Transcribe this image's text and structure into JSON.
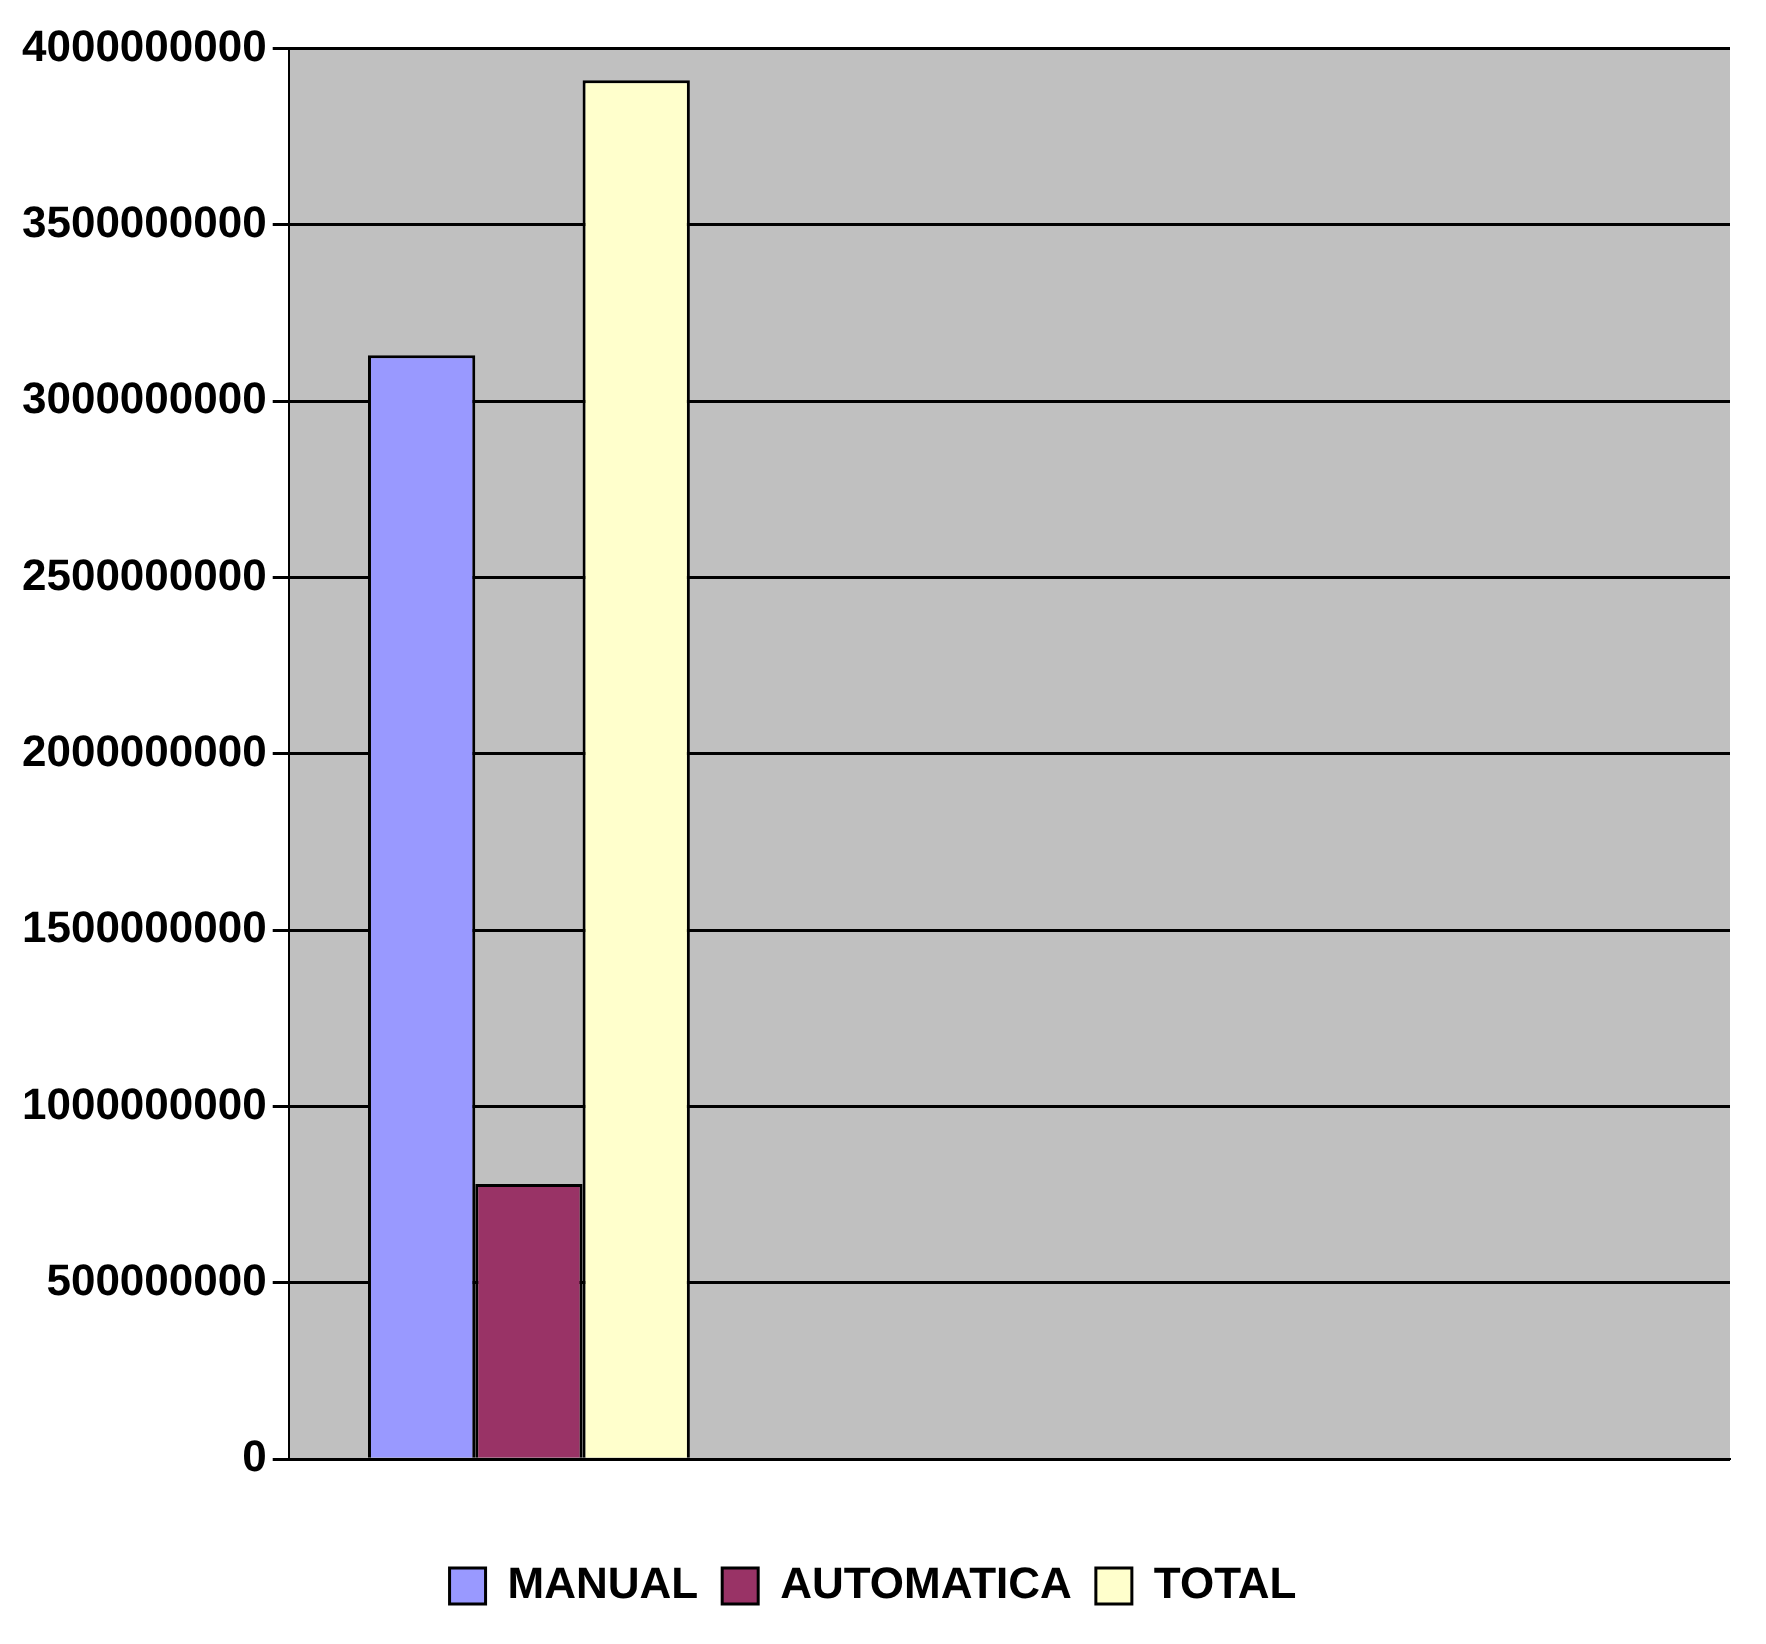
{
  "chart_data": {
    "type": "bar",
    "categories": [
      null,
      null,
      null
    ],
    "series": [
      {
        "name": "MANUAL",
        "color": "#9999ff",
        "values": [
          3130000000,
          null,
          null
        ]
      },
      {
        "name": "AUTOMATICA",
        "color": "#993366",
        "values": [
          780000000,
          null,
          null
        ]
      },
      {
        "name": "TOTAL",
        "color": "#ffffcc",
        "values": [
          3910000000,
          null,
          null
        ]
      }
    ],
    "ylim": [
      0,
      4000000000
    ],
    "yticks": [
      0,
      500000000,
      1000000000,
      1500000000,
      2000000000,
      2500000000,
      3000000000,
      3500000000,
      4000000000
    ],
    "grid": "y",
    "legend": "bottom"
  }
}
